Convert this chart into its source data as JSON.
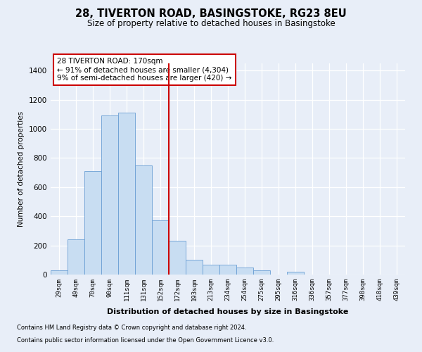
{
  "title": "28, TIVERTON ROAD, BASINGSTOKE, RG23 8EU",
  "subtitle": "Size of property relative to detached houses in Basingstoke",
  "xlabel": "Distribution of detached houses by size in Basingstoke",
  "ylabel": "Number of detached properties",
  "categories": [
    "29sqm",
    "49sqm",
    "70sqm",
    "90sqm",
    "111sqm",
    "131sqm",
    "152sqm",
    "172sqm",
    "193sqm",
    "213sqm",
    "234sqm",
    "254sqm",
    "275sqm",
    "295sqm",
    "316sqm",
    "336sqm",
    "357sqm",
    "377sqm",
    "398sqm",
    "418sqm",
    "439sqm"
  ],
  "values": [
    30,
    240,
    710,
    1090,
    1110,
    750,
    370,
    230,
    100,
    70,
    70,
    50,
    30,
    0,
    20,
    0,
    0,
    0,
    0,
    0,
    0
  ],
  "bar_color": "#c8ddf2",
  "bar_edge_color": "#6b9fd4",
  "background_color": "#e8eef8",
  "grid_color": "#ffffff",
  "vline_position": 6.5,
  "vline_color": "#cc0000",
  "annotation_text": "28 TIVERTON ROAD: 170sqm\n← 91% of detached houses are smaller (4,304)\n9% of semi-detached houses are larger (420) →",
  "annotation_box_color": "#cc0000",
  "ylim": [
    0,
    1450
  ],
  "yticks": [
    0,
    200,
    400,
    600,
    800,
    1000,
    1200,
    1400
  ],
  "footnote1": "Contains HM Land Registry data © Crown copyright and database right 2024.",
  "footnote2": "Contains public sector information licensed under the Open Government Licence v3.0."
}
